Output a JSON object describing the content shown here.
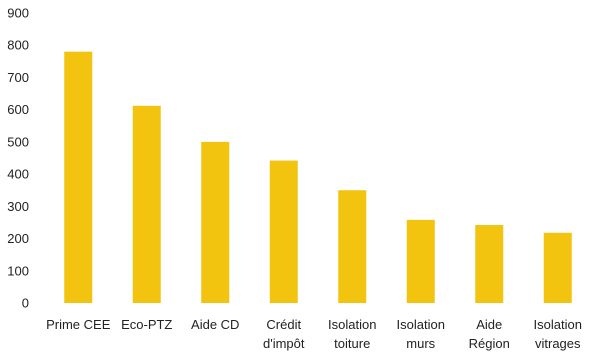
{
  "chart_data": {
    "type": "bar",
    "title": "",
    "xlabel": "",
    "ylabel": "",
    "categories": [
      [
        "Prime CEE"
      ],
      [
        "Eco-PTZ"
      ],
      [
        "Aide CD"
      ],
      [
        "Crédit",
        "d'impôt"
      ],
      [
        "Isolation",
        "toiture"
      ],
      [
        "Isolation",
        "murs"
      ],
      [
        "Aide",
        "Région"
      ],
      [
        "Isolation",
        "vitrages"
      ]
    ],
    "values": [
      780,
      612,
      500,
      442,
      350,
      258,
      242,
      218
    ],
    "ylim": [
      0,
      900
    ],
    "yticks": [
      0,
      100,
      200,
      300,
      400,
      500,
      600,
      700,
      800,
      900
    ],
    "grid": false,
    "legend": "none",
    "bar_color": "#f2c40f"
  }
}
